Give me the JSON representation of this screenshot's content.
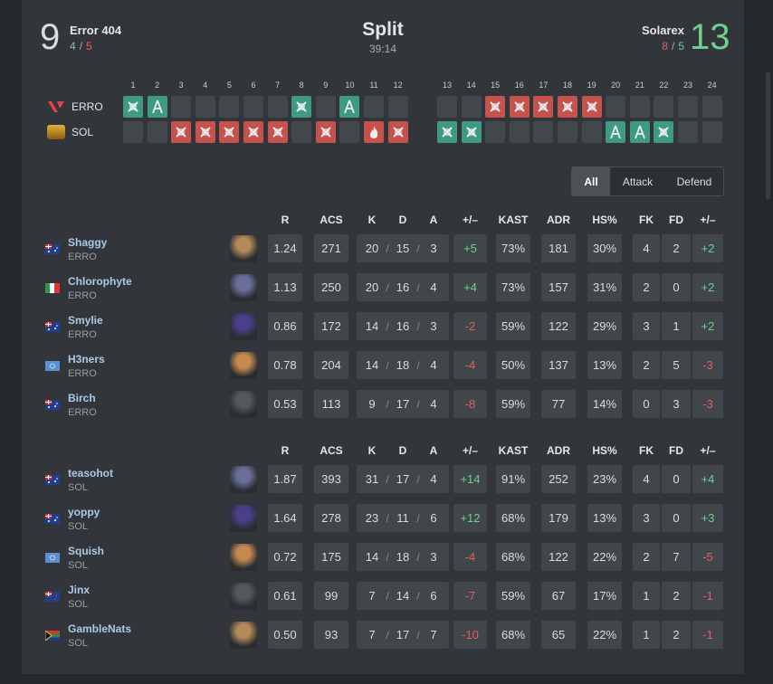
{
  "header": {
    "teams": [
      {
        "name": "Error 404",
        "score": 9,
        "side_scores": [
          {
            "value": 4,
            "side": "ct"
          },
          {
            "value": 5,
            "side": "t"
          }
        ]
      },
      {
        "name": "Solarex",
        "score": 13,
        "side_scores": [
          {
            "value": 8,
            "side": "t"
          },
          {
            "value": 5,
            "side": "ct"
          }
        ]
      }
    ],
    "separator": "/",
    "map": "Split",
    "duration": "39:14"
  },
  "rounds": {
    "numbers": [
      1,
      2,
      3,
      4,
      5,
      6,
      7,
      8,
      9,
      10,
      11,
      12,
      13,
      14,
      15,
      16,
      17,
      18,
      19,
      20,
      21,
      22,
      23,
      24
    ],
    "teams": [
      {
        "tag": "ERRO",
        "results": [
          "ct-elim",
          "ct-defuse",
          null,
          null,
          null,
          null,
          null,
          "ct-elim",
          null,
          "ct-defuse",
          null,
          null,
          null,
          null,
          "t-elim",
          "t-elim",
          "t-elim",
          "t-elim",
          "t-elim",
          null,
          null,
          null,
          null,
          null
        ]
      },
      {
        "tag": "SOL",
        "results": [
          null,
          null,
          "t-elim",
          "t-elim",
          "t-elim",
          "t-elim",
          "t-elim",
          null,
          "t-elim",
          null,
          "t-boom",
          "t-elim",
          "ct-elim",
          "ct-elim",
          null,
          null,
          null,
          null,
          null,
          "ct-defuse",
          "ct-defuse",
          "ct-elim",
          null,
          null
        ]
      }
    ]
  },
  "tabs": {
    "items": [
      "All",
      "Attack",
      "Defend"
    ],
    "active": 0
  },
  "tables": [
    {
      "columns": [
        "R",
        "ACS",
        "K",
        "D",
        "A",
        "+/–",
        "KAST",
        "ADR",
        "HS%",
        "FK",
        "FD",
        "+/–"
      ],
      "players": [
        {
          "name": "Shaggy",
          "team": "ERRO",
          "flag": "au",
          "stats": [
            "1.24",
            "271",
            "20",
            "15",
            "3",
            "+5",
            "73%",
            "181",
            "30%",
            "4",
            "2",
            "+2"
          ]
        },
        {
          "name": "Chlorophyte",
          "team": "ERRO",
          "flag": "it",
          "stats": [
            "1.13",
            "250",
            "20",
            "16",
            "4",
            "+4",
            "73%",
            "157",
            "31%",
            "2",
            "0",
            "+2"
          ]
        },
        {
          "name": "Smylie",
          "team": "ERRO",
          "flag": "au",
          "stats": [
            "0.86",
            "172",
            "14",
            "16",
            "3",
            "-2",
            "59%",
            "122",
            "29%",
            "3",
            "1",
            "+2"
          ]
        },
        {
          "name": "H3ners",
          "team": "ERRO",
          "flag": "un",
          "stats": [
            "0.78",
            "204",
            "14",
            "18",
            "4",
            "-4",
            "50%",
            "137",
            "13%",
            "2",
            "5",
            "-3"
          ]
        },
        {
          "name": "Birch",
          "team": "ERRO",
          "flag": "au",
          "stats": [
            "0.53",
            "113",
            "9",
            "17",
            "4",
            "-8",
            "59%",
            "77",
            "14%",
            "0",
            "3",
            "-3"
          ]
        }
      ]
    },
    {
      "columns": [
        "R",
        "ACS",
        "K",
        "D",
        "A",
        "+/–",
        "KAST",
        "ADR",
        "HS%",
        "FK",
        "FD",
        "+/–"
      ],
      "players": [
        {
          "name": "teasohot",
          "team": "SOL",
          "flag": "au",
          "stats": [
            "1.87",
            "393",
            "31",
            "17",
            "4",
            "+14",
            "91%",
            "252",
            "23%",
            "4",
            "0",
            "+4"
          ]
        },
        {
          "name": "yoppy",
          "team": "SOL",
          "flag": "au",
          "stats": [
            "1.64",
            "278",
            "23",
            "11",
            "6",
            "+12",
            "68%",
            "179",
            "13%",
            "3",
            "0",
            "+3"
          ]
        },
        {
          "name": "Squish",
          "team": "SOL",
          "flag": "un",
          "stats": [
            "0.72",
            "175",
            "14",
            "18",
            "3",
            "-4",
            "68%",
            "122",
            "22%",
            "2",
            "7",
            "-5"
          ]
        },
        {
          "name": "Jinx",
          "team": "SOL",
          "flag": "nz",
          "stats": [
            "0.61",
            "99",
            "7",
            "14",
            "6",
            "-7",
            "59%",
            "67",
            "17%",
            "1",
            "2",
            "-1"
          ]
        },
        {
          "name": "GambleNats",
          "team": "SOL",
          "flag": "za",
          "stats": [
            "0.50",
            "93",
            "7",
            "17",
            "7",
            "-10",
            "68%",
            "65",
            "22%",
            "1",
            "2",
            "-1"
          ]
        }
      ]
    }
  ]
}
